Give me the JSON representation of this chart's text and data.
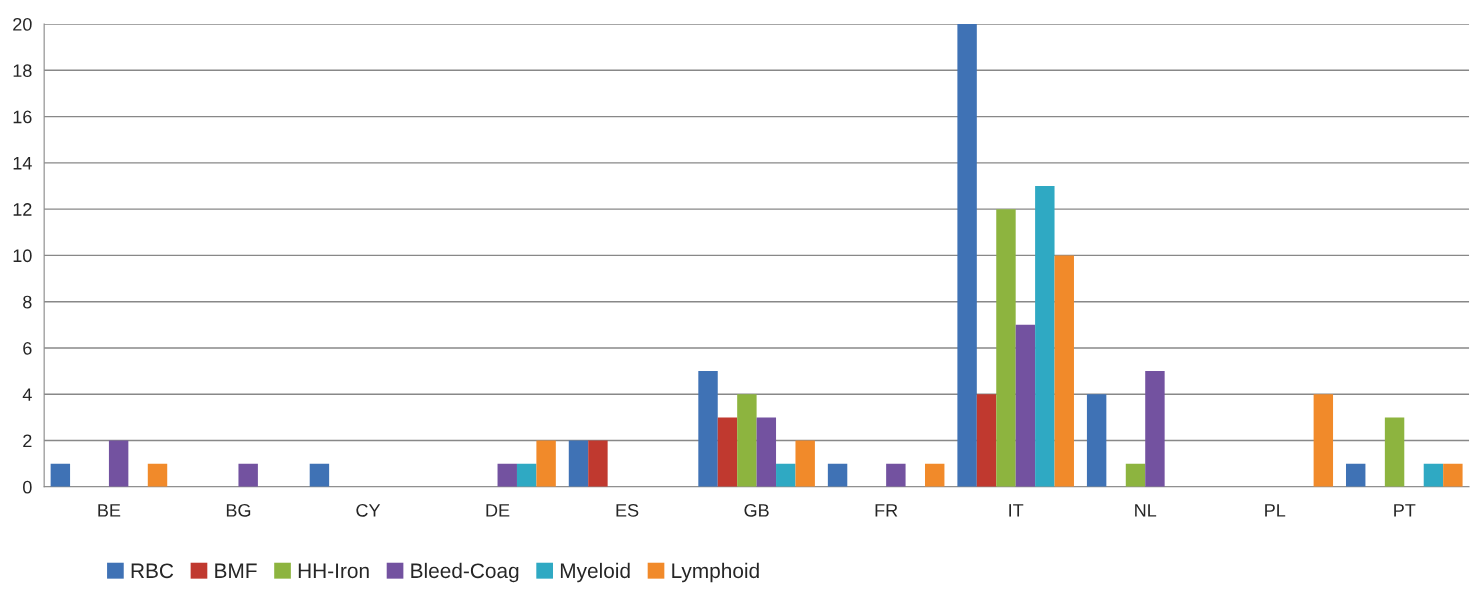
{
  "chart_data": {
    "type": "bar",
    "categories": [
      "BE",
      "BG",
      "CY",
      "DE",
      "ES",
      "GB",
      "FR",
      "IT",
      "NL",
      "PL",
      "PT"
    ],
    "series": [
      {
        "name": "RBC",
        "color": "#3f72b5",
        "values": [
          1,
          0,
          1,
          0,
          2,
          5,
          1,
          20,
          4,
          0,
          1
        ]
      },
      {
        "name": "BMF",
        "color": "#c0392f",
        "values": [
          0,
          0,
          0,
          0,
          2,
          3,
          0,
          4,
          0,
          0,
          0
        ]
      },
      {
        "name": "HH-Iron",
        "color": "#8db43f",
        "values": [
          0,
          0,
          0,
          0,
          0,
          4,
          0,
          12,
          1,
          0,
          3
        ]
      },
      {
        "name": "Bleed-Coag",
        "color": "#7352a0",
        "values": [
          2,
          1,
          0,
          1,
          0,
          3,
          1,
          7,
          5,
          0,
          0
        ]
      },
      {
        "name": "Myeloid",
        "color": "#2fa9c3",
        "values": [
          0,
          0,
          0,
          1,
          0,
          1,
          0,
          13,
          0,
          0,
          1
        ]
      },
      {
        "name": "Lymphoid",
        "color": "#f18a2a",
        "values": [
          1,
          0,
          0,
          2,
          0,
          2,
          1,
          10,
          0,
          4,
          1
        ]
      }
    ],
    "ylim": [
      0,
      20
    ],
    "yticks": [
      0,
      2,
      4,
      6,
      8,
      10,
      12,
      14,
      16,
      18,
      20
    ],
    "grid": "y",
    "legend": "bottom left"
  }
}
